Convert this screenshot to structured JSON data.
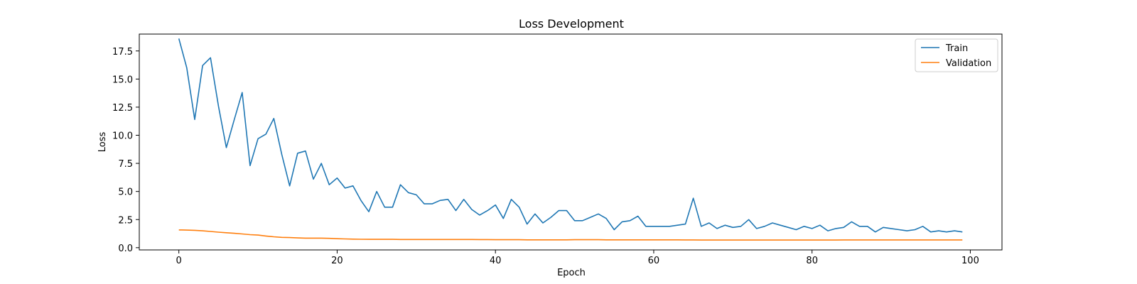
{
  "chart_data": {
    "type": "line",
    "title": "Loss Development",
    "xlabel": "Epoch",
    "ylabel": "Loss",
    "xlim": [
      -5,
      104
    ],
    "ylim": [
      -0.2,
      19.0
    ],
    "xticks": [
      "0",
      "20",
      "40",
      "60",
      "80",
      "100"
    ],
    "yticks": [
      "0.0",
      "2.5",
      "5.0",
      "7.5",
      "10.0",
      "12.5",
      "15.0",
      "17.5"
    ],
    "grid": false,
    "legend_position": "top-right",
    "x": [
      0,
      1,
      2,
      3,
      4,
      5,
      6,
      7,
      8,
      9,
      10,
      11,
      12,
      13,
      14,
      15,
      16,
      17,
      18,
      19,
      20,
      21,
      22,
      23,
      24,
      25,
      26,
      27,
      28,
      29,
      30,
      31,
      32,
      33,
      34,
      35,
      36,
      37,
      38,
      39,
      40,
      41,
      42,
      43,
      44,
      45,
      46,
      47,
      48,
      49,
      50,
      51,
      52,
      53,
      54,
      55,
      56,
      57,
      58,
      59,
      60,
      61,
      62,
      63,
      64,
      65,
      66,
      67,
      68,
      69,
      70,
      71,
      72,
      73,
      74,
      75,
      76,
      77,
      78,
      79,
      80,
      81,
      82,
      83,
      84,
      85,
      86,
      87,
      88,
      89,
      90,
      91,
      92,
      93,
      94,
      95,
      96,
      97,
      98,
      99
    ],
    "series": [
      {
        "name": "Train",
        "color": "#1f77b4",
        "values": [
          18.6,
          16.0,
          11.4,
          16.2,
          16.9,
          12.6,
          8.9,
          11.4,
          13.8,
          7.3,
          9.7,
          10.1,
          11.5,
          8.3,
          5.5,
          8.4,
          8.6,
          6.1,
          7.5,
          5.6,
          6.2,
          5.3,
          5.5,
          4.2,
          3.2,
          5.0,
          3.6,
          3.6,
          5.6,
          4.9,
          4.7,
          3.9,
          3.9,
          4.2,
          4.3,
          3.3,
          4.3,
          3.4,
          2.9,
          3.3,
          3.8,
          2.6,
          4.3,
          3.6,
          2.1,
          3.0,
          2.2,
          2.7,
          3.3,
          3.3,
          2.4,
          2.4,
          2.7,
          3.0,
          2.6,
          1.6,
          2.3,
          2.4,
          2.8,
          1.9,
          1.9,
          1.9,
          1.9,
          2.0,
          2.1,
          4.4,
          1.9,
          2.2,
          1.7,
          2.0,
          1.8,
          1.9,
          2.5,
          1.7,
          1.9,
          2.2,
          2.0,
          1.8,
          1.6,
          1.9,
          1.7,
          2.0,
          1.5,
          1.7,
          1.8,
          2.3,
          1.9,
          1.9,
          1.4,
          1.8,
          1.7,
          1.6,
          1.5,
          1.6,
          1.9,
          1.4,
          1.5,
          1.4,
          1.5,
          1.4
        ]
      },
      {
        "name": "Validation",
        "color": "#ff7f0e",
        "values": [
          1.58,
          1.56,
          1.54,
          1.5,
          1.44,
          1.38,
          1.33,
          1.28,
          1.22,
          1.16,
          1.12,
          1.04,
          0.97,
          0.92,
          0.9,
          0.87,
          0.85,
          0.85,
          0.85,
          0.83,
          0.8,
          0.78,
          0.76,
          0.75,
          0.74,
          0.74,
          0.74,
          0.74,
          0.73,
          0.73,
          0.73,
          0.73,
          0.73,
          0.73,
          0.73,
          0.73,
          0.73,
          0.73,
          0.72,
          0.72,
          0.71,
          0.71,
          0.71,
          0.71,
          0.7,
          0.7,
          0.7,
          0.7,
          0.7,
          0.7,
          0.71,
          0.71,
          0.71,
          0.71,
          0.7,
          0.7,
          0.7,
          0.7,
          0.7,
          0.7,
          0.7,
          0.7,
          0.7,
          0.7,
          0.69,
          0.69,
          0.68,
          0.68,
          0.68,
          0.68,
          0.68,
          0.68,
          0.68,
          0.68,
          0.68,
          0.68,
          0.68,
          0.68,
          0.68,
          0.68,
          0.68,
          0.68,
          0.68,
          0.68,
          0.69,
          0.69,
          0.69,
          0.69,
          0.69,
          0.69,
          0.69,
          0.69,
          0.69,
          0.69,
          0.69,
          0.69,
          0.69,
          0.69,
          0.69,
          0.69
        ]
      }
    ]
  }
}
